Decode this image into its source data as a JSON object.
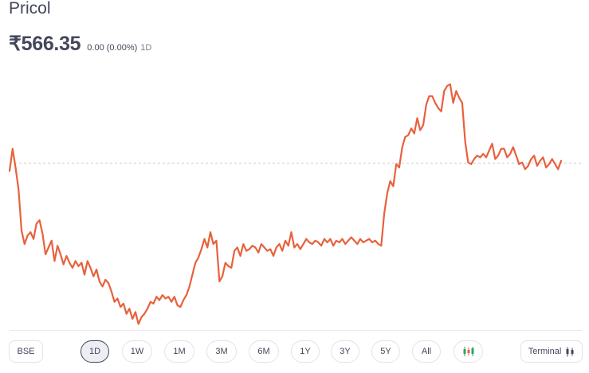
{
  "stock": {
    "name": "Pricol",
    "price": "₹566.35",
    "change": "0.00 (0.00%)",
    "period": "1D"
  },
  "controls": {
    "exchange": "BSE",
    "ranges": [
      "1D",
      "1W",
      "1M",
      "3M",
      "6M",
      "1Y",
      "3Y",
      "5Y",
      "All"
    ],
    "active_range": "1D",
    "chart_toggle_icon": "candlestick-icon",
    "terminal_label": "Terminal",
    "terminal_icon": "candlestick-icon"
  },
  "colors": {
    "line": "#e8613c",
    "reference": "#c9c9cf",
    "text": "#44475b"
  },
  "chart_data": {
    "type": "line",
    "reference_value": 566.35,
    "ylim": [
      556.5,
      571.5
    ],
    "series": [
      {
        "values": [
          565.9,
          567.2,
          566.1,
          564.8,
          562.4,
          561.6,
          562.1,
          562.3,
          561.9,
          562.8,
          563.0,
          562.2,
          561.0,
          561.4,
          561.8,
          560.6,
          561.5,
          561.0,
          560.4,
          560.9,
          560.5,
          560.2,
          560.6,
          560.3,
          560.5,
          559.8,
          560.6,
          560.2,
          559.7,
          560.1,
          559.4,
          559.1,
          559.5,
          559.3,
          558.8,
          558.2,
          558.4,
          557.9,
          558.1,
          557.5,
          557.8,
          557.2,
          557.6,
          556.9,
          557.3,
          557.5,
          557.8,
          558.2,
          558.1,
          558.5,
          558.3,
          558.6,
          558.4,
          558.5,
          558.2,
          558.5,
          558.0,
          557.9,
          558.3,
          558.6,
          559.1,
          559.8,
          560.5,
          560.8,
          561.3,
          561.9,
          561.4,
          562.3,
          561.6,
          561.8,
          559.4,
          559.7,
          560.5,
          560.3,
          560.2,
          561.2,
          561.4,
          560.9,
          561.6,
          561.2,
          561.3,
          561.5,
          561.4,
          561.1,
          561.6,
          561.4,
          561.2,
          561.3,
          560.9,
          561.4,
          561.6,
          561.2,
          561.8,
          561.5,
          562.3,
          561.4,
          561.6,
          561.3,
          561.6,
          561.9,
          561.7,
          561.6,
          561.8,
          561.7,
          561.5,
          561.9,
          561.7,
          561.9,
          561.5,
          561.8,
          561.7,
          561.9,
          561.6,
          561.8,
          562.0,
          561.8,
          561.6,
          561.9,
          561.7,
          561.8,
          561.9,
          561.7,
          561.8,
          561.6,
          561.5,
          563.4,
          564.6,
          565.3,
          565.0,
          566.3,
          566.1,
          567.3,
          567.9,
          568.0,
          568.4,
          568.1,
          569.0,
          568.3,
          568.6,
          569.8,
          570.3,
          570.3,
          569.9,
          569.6,
          569.4,
          570.6,
          570.9,
          571.0,
          569.9,
          570.6,
          570.2,
          569.9,
          567.6,
          566.4,
          566.3,
          566.6,
          566.8,
          566.7,
          566.9,
          566.7,
          567.1,
          567.5,
          566.6,
          566.8,
          567.2,
          567.2,
          566.7,
          566.9,
          567.3,
          566.8,
          566.3,
          566.4,
          566.0,
          566.2,
          566.6,
          566.8,
          566.2,
          566.5,
          566.7,
          566.1,
          566.3,
          566.6,
          566.3,
          566.0,
          566.5
        ]
      }
    ]
  }
}
